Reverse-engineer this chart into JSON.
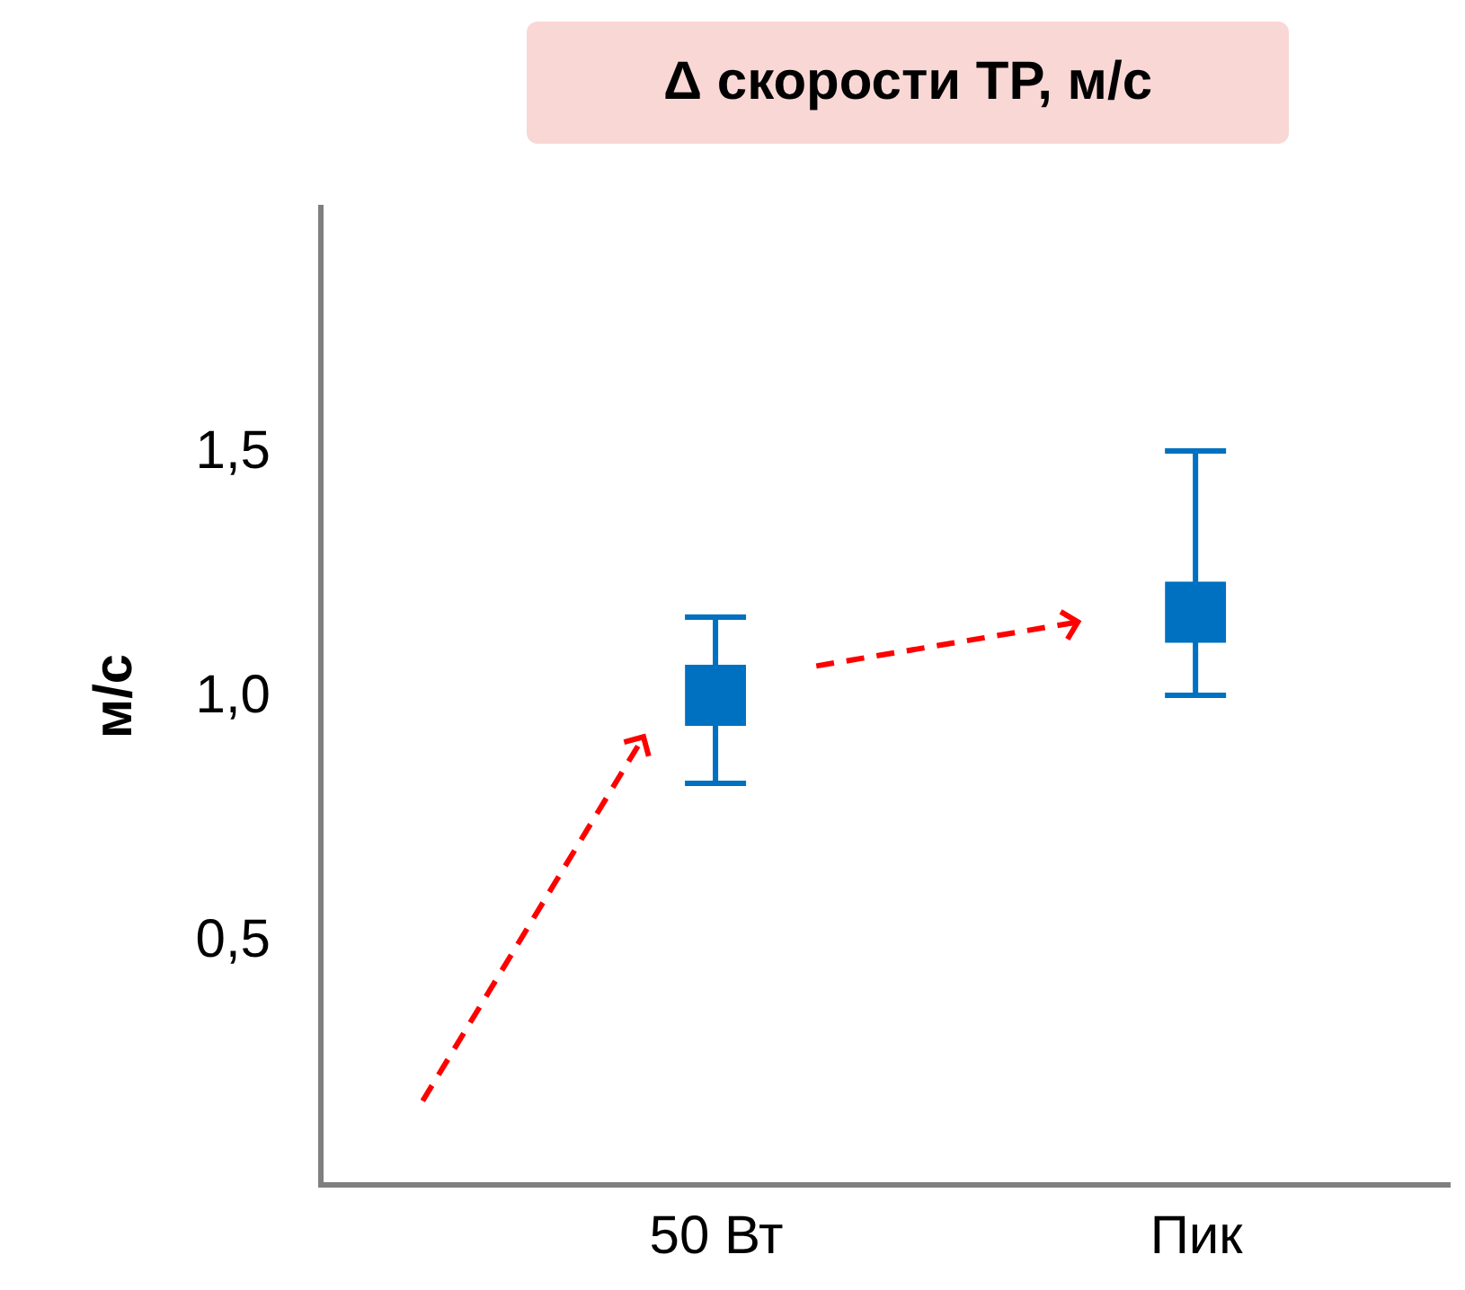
{
  "chart_data": {
    "type": "scatter",
    "title": "Δ скорости ТР, м/с",
    "ylabel": "м/с",
    "categories": [
      "50 Вт",
      "Пик"
    ],
    "values": [
      1.0,
      1.17
    ],
    "color": "#0070c0",
    "marker": "square",
    "errors": [
      [
        0.82,
        1.16
      ],
      [
        1.0,
        1.5
      ]
    ],
    "ylim": [
      0,
      2
    ],
    "yticks": [
      {
        "value": 0.5,
        "label": "0,5"
      },
      {
        "value": 1.0,
        "label": "1,0"
      },
      {
        "value": 1.5,
        "label": "1,5"
      }
    ],
    "grid": false,
    "legend": false
  }
}
